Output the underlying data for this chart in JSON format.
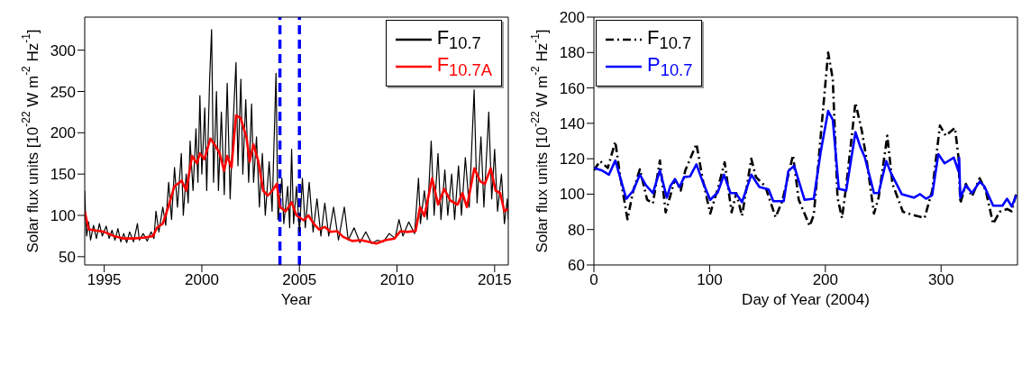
{
  "chart_data": [
    {
      "type": "line",
      "xlabel": "Year",
      "ylabel": "Solar flux units [10$^{-22}$ W m$^{-2}$ Hz$^{-1}$]",
      "xlim": [
        1994,
        2015.7
      ],
      "xticks": [
        1995,
        2000,
        2005,
        2010,
        2015
      ],
      "ylim": [
        40,
        340
      ],
      "yticks": [
        50,
        100,
        150,
        200,
        250,
        300
      ],
      "legend": "top right",
      "marker": "none",
      "ref_lines": [
        {
          "axis": "x",
          "value": 2004,
          "color": "#0000ff",
          "line_style": "dashed"
        },
        {
          "axis": "x",
          "value": 2005,
          "color": "#0000ff",
          "line_style": "dashed"
        }
      ],
      "series": [
        {
          "name": "F$_{10.7}$",
          "color": "#000000",
          "line_style": "solid",
          "x": [
            1994.0,
            1994.05,
            1994.1,
            1994.2,
            1994.3,
            1994.45,
            1994.6,
            1994.75,
            1994.9,
            1995.1,
            1995.25,
            1995.4,
            1995.55,
            1995.7,
            1995.85,
            1996.0,
            1996.15,
            1996.3,
            1996.5,
            1996.7,
            1996.8,
            1997.0,
            1997.2,
            1997.4,
            1997.55,
            1997.65,
            1997.8,
            1998.0,
            1998.15,
            1998.3,
            1998.45,
            1998.6,
            1998.75,
            1998.95,
            1999.05,
            1999.2,
            1999.3,
            1999.4,
            1999.55,
            1999.7,
            1999.8,
            1999.9,
            2000.0,
            2000.15,
            2000.25,
            2000.4,
            2000.5,
            2000.6,
            2000.75,
            2000.85,
            2001.0,
            2001.15,
            2001.3,
            2001.45,
            2001.6,
            2001.75,
            2001.85,
            2002.0,
            2002.1,
            2002.25,
            2002.4,
            2002.55,
            2002.65,
            2002.8,
            2002.95,
            2003.1,
            2003.25,
            2003.45,
            2003.6,
            2003.8,
            2003.9,
            2004.1,
            2004.2,
            2004.4,
            2004.5,
            2004.6,
            2004.7,
            2004.85,
            2005.0,
            2005.15,
            2005.3,
            2005.5,
            2005.7,
            2005.9,
            2006.1,
            2006.3,
            2006.5,
            2006.75,
            2007.0,
            2007.3,
            2007.5,
            2007.8,
            2008.1,
            2008.4,
            2008.7,
            2009.0,
            2009.3,
            2009.6,
            2009.9,
            2010.1,
            2010.3,
            2010.6,
            2010.9,
            2011.1,
            2011.2,
            2011.4,
            2011.55,
            2011.75,
            2011.9,
            2012.1,
            2012.25,
            2012.45,
            2012.6,
            2012.8,
            2012.95,
            2013.15,
            2013.3,
            2013.5,
            2013.7,
            2013.95,
            2014.1,
            2014.3,
            2014.45,
            2014.7,
            2014.85,
            2015.0,
            2015.15,
            2015.35,
            2015.5,
            2015.65,
            2015.7
          ],
          "values": [
            130,
            95,
            75,
            92,
            70,
            88,
            72,
            90,
            75,
            87,
            72,
            82,
            70,
            84,
            68,
            78,
            67,
            80,
            68,
            90,
            70,
            78,
            69,
            80,
            72,
            105,
            80,
            110,
            88,
            140,
            95,
            158,
            110,
            175,
            100,
            150,
            115,
            190,
            130,
            205,
            140,
            245,
            150,
            230,
            130,
            265,
            325,
            140,
            250,
            130,
            225,
            125,
            260,
            120,
            210,
            285,
            160,
            265,
            150,
            240,
            140,
            235,
            140,
            195,
            110,
            175,
            100,
            165,
            105,
            272,
            95,
            145,
            90,
            135,
            85,
            180,
            90,
            135,
            80,
            145,
            85,
            140,
            80,
            120,
            75,
            115,
            75,
            110,
            70,
            110,
            70,
            85,
            67,
            80,
            66,
            70,
            68,
            78,
            72,
            95,
            75,
            92,
            78,
            145,
            90,
            130,
            95,
            190,
            100,
            175,
            95,
            155,
            100,
            150,
            95,
            160,
            100,
            170,
            110,
            252,
            115,
            195,
            110,
            225,
            120,
            180,
            105,
            150,
            90,
            120,
            95
          ]
        },
        {
          "name": "F$_{10.7A}$",
          "color": "#ff0000",
          "line_style": "solid",
          "x": [
            1994.0,
            1994.2,
            1995.0,
            1995.5,
            1996.0,
            1996.5,
            1997.0,
            1997.5,
            1997.7,
            1998.0,
            1998.28,
            1998.59,
            1998.97,
            1999.2,
            1999.5,
            1999.75,
            1999.9,
            2000.13,
            2000.44,
            2000.67,
            2000.9,
            2001.14,
            2001.3,
            2001.52,
            2001.75,
            2001.99,
            2002.3,
            2002.45,
            2002.64,
            2002.9,
            2003.14,
            2003.38,
            2003.61,
            2003.84,
            2004.0,
            2004.3,
            2004.6,
            2004.85,
            2005.23,
            2005.46,
            2005.7,
            2006.0,
            2006.3,
            2006.6,
            2006.93,
            2007.24,
            2007.7,
            2008.17,
            2008.94,
            2009.4,
            2009.87,
            2010.18,
            2010.49,
            2010.95,
            2011.18,
            2011.4,
            2011.8,
            2012.1,
            2012.42,
            2012.73,
            2013.1,
            2013.35,
            2013.58,
            2013.96,
            2014.27,
            2014.5,
            2014.8,
            2015.05,
            2015.28,
            2015.5,
            2015.7
          ],
          "values": [
            105,
            83,
            80,
            75,
            72,
            72,
            73,
            75,
            85,
            90,
            110,
            135,
            142,
            130,
            172,
            163,
            175,
            168,
            193,
            185,
            176,
            154,
            172,
            158,
            221,
            218,
            193,
            165,
            186,
            165,
            130,
            124,
            130,
            138,
            110,
            105,
            116,
            100,
            94,
            100,
            91,
            83,
            86,
            80,
            81,
            74,
            69,
            70,
            66,
            70,
            72,
            81,
            80,
            81,
            110,
            99,
            145,
            113,
            132,
            118,
            113,
            127,
            110,
            157,
            141,
            138,
            157,
            130,
            127,
            105,
            108
          ]
        }
      ]
    },
    {
      "type": "line",
      "xlabel": "Day of Year (2004)",
      "ylabel": "Solar flux units [10$^{-22}$ W m$^{-2}$ Hz$^{-1}$]",
      "xlim": [
        0,
        366
      ],
      "xticks": [
        0,
        100,
        200,
        300
      ],
      "ylim": [
        60,
        200
      ],
      "yticks": [
        60,
        80,
        100,
        120,
        140,
        160,
        180,
        200
      ],
      "legend": "top left",
      "marker": "none",
      "series": [
        {
          "name": "F$_{10.7}$",
          "color": "#000000",
          "line_style": "dashed",
          "x": [
            0,
            5.3,
            12,
            18.5,
            22.5,
            29,
            34,
            39.7,
            46,
            51,
            57,
            62,
            70,
            75,
            79,
            88.6,
            94,
            100.5,
            107,
            113,
            119,
            123,
            128,
            136,
            140,
            148,
            157,
            162.7,
            172,
            177,
            186.5,
            190,
            196,
            202.4,
            206.4,
            210.5,
            214.4,
            218,
            226,
            231.6,
            235.5,
            242,
            246,
            253.5,
            258,
            267,
            275,
            285.7,
            292.3,
            299,
            304,
            312,
            315,
            316.6,
            321.4,
            326.7,
            333.3,
            338.6,
            345,
            350.6,
            357,
            361,
            365
          ],
          "values": [
            113.5,
            118.7,
            114.8,
            129.7,
            111,
            85.8,
            102,
            114,
            96.8,
            94.8,
            119,
            89.7,
            108.4,
            102,
            113.5,
            128.4,
            108.4,
            89,
            103,
            118,
            89.7,
            100.6,
            87.7,
            120,
            109.7,
            104.5,
            87,
            96,
            122,
            96.8,
            82,
            88.4,
            133,
            180,
            165,
            98,
            86.5,
            104.5,
            151.6,
            135.5,
            120,
            89,
            98,
            133,
            105.8,
            90,
            88.4,
            86.5,
            102,
            138.7,
            133,
            137.4,
            121,
            94.8,
            105.8,
            98.7,
            109,
            102,
            83.2,
            90,
            91.6,
            90.3,
            100.6
          ]
        },
        {
          "name": "P$_{10.7}$",
          "color": "#0000ff",
          "line_style": "solid",
          "x": [
            0,
            6.6,
            13,
            18.5,
            28,
            34,
            39.7,
            45,
            51,
            57,
            63,
            66,
            70,
            74,
            78,
            83,
            88.6,
            94,
            100.5,
            107,
            112.4,
            118,
            122.5,
            128,
            136,
            143,
            151,
            155,
            164,
            168,
            173,
            182,
            190,
            196,
            202.4,
            206.4,
            211.6,
            218,
            226,
            230,
            234,
            242,
            246,
            252.6,
            256.6,
            266,
            276.5,
            281.8,
            287,
            292.3,
            297.6,
            303,
            311,
            315,
            315.6,
            316.6,
            321.4,
            326.7,
            333.3,
            337.3,
            345,
            353,
            357,
            361,
            365
          ],
          "values": [
            114.8,
            113.5,
            111,
            119,
            97.4,
            102,
            111,
            105,
            100.6,
            113.5,
            98,
            104.5,
            108.4,
            104,
            109.7,
            110,
            116.8,
            107,
            96.8,
            101,
            111,
            100.6,
            100.6,
            95.5,
            111,
            104,
            102.6,
            96,
            96,
            113,
            116,
            96.8,
            97.4,
            124,
            147,
            142,
            103,
            102,
            135,
            127,
            121,
            100.6,
            100.6,
            118.7,
            112,
            100,
            98,
            100,
            97.4,
            99.4,
            122.6,
            117.4,
            120.6,
            113,
            120.6,
            98,
            105,
            100.6,
            107,
            104.5,
            93.5,
            93.5,
            97.4,
            93,
            99.4
          ]
        }
      ]
    }
  ]
}
